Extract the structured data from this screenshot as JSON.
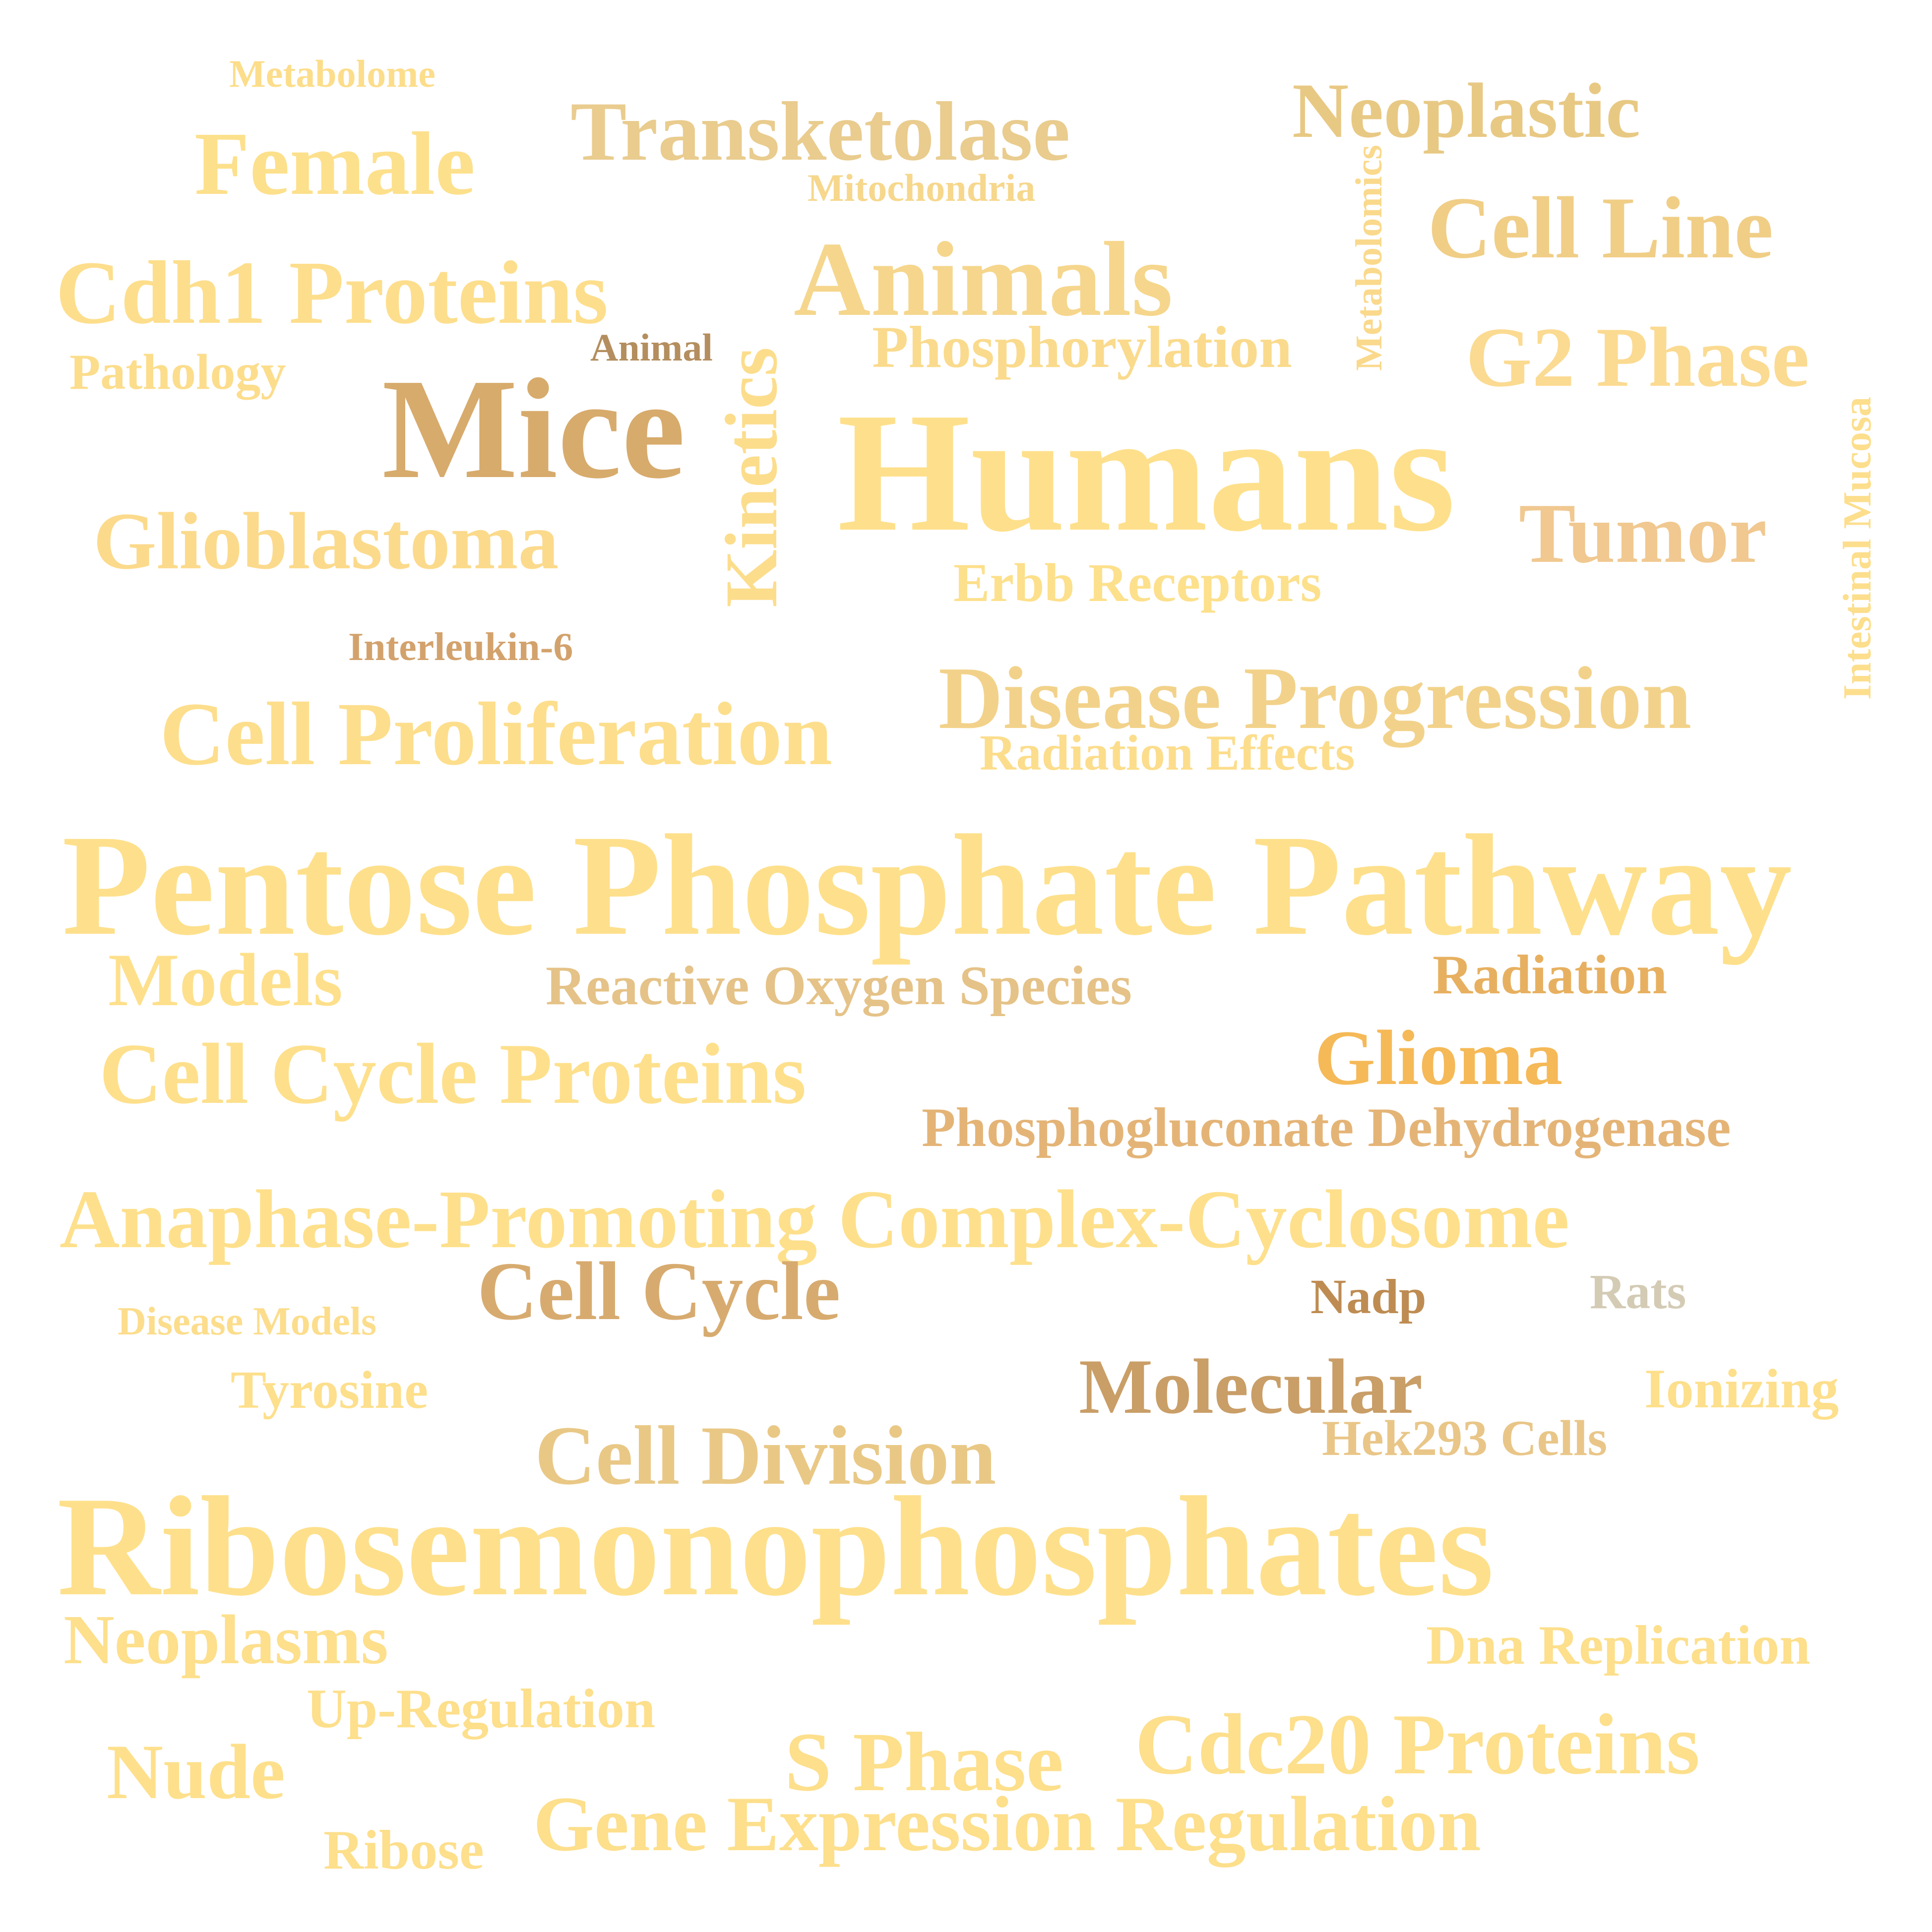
{
  "words": [
    {
      "text": "Metabolome",
      "color": "#FCDD8A"
    },
    {
      "text": "Female",
      "color": "#FDE08C"
    },
    {
      "text": "Transketolase",
      "color": "#E9CC8E"
    },
    {
      "text": "Mitochondria",
      "color": "#F6D78C"
    },
    {
      "text": "Neoplastic",
      "color": "#E8C984"
    },
    {
      "text": "Metabolomics",
      "color": "#FAD98C"
    },
    {
      "text": "Cell Line",
      "color": "#F0CE86"
    },
    {
      "text": "Cdh1 Proteins",
      "color": "#FDDE8C"
    },
    {
      "text": "Animals",
      "color": "#F5D68C"
    },
    {
      "text": "Pathology",
      "color": "#FCDD8C"
    },
    {
      "text": "Animal",
      "color": "#B48E5E"
    },
    {
      "text": "Phosphorylation",
      "color": "#FADA8C"
    },
    {
      "text": "G2 Phase",
      "color": "#FBDA91"
    },
    {
      "text": "Mice",
      "color": "#D7AB6C"
    },
    {
      "text": "Kinetics",
      "color": "#FCDD8C"
    },
    {
      "text": "Humans",
      "color": "#FEE08C"
    },
    {
      "text": "Intestinal Mucosa",
      "color": "#FCDE8C"
    },
    {
      "text": "Tumor",
      "color": "#F0C890"
    },
    {
      "text": "Glioblastoma",
      "color": "#FBDA8C"
    },
    {
      "text": "Erbb Receptors",
      "color": "#FDE08C"
    },
    {
      "text": "Interleukin-6",
      "color": "#D3A26C"
    },
    {
      "text": "Disease Progression",
      "color": "#F2D28A"
    },
    {
      "text": "Cell Proliferation",
      "color": "#FDDE8C"
    },
    {
      "text": "Radiation Effects",
      "color": "#FCDD8C"
    },
    {
      "text": "Pentose Phosphate Pathway",
      "color": "#FEE08C"
    },
    {
      "text": "Models",
      "color": "#FEE08C"
    },
    {
      "text": "Reactive Oxygen Species",
      "color": "#E5C287"
    },
    {
      "text": "Radiation",
      "color": "#E7B060"
    },
    {
      "text": "Cell Cycle Proteins",
      "color": "#FEE08C"
    },
    {
      "text": "Glioma",
      "color": "#F5B957"
    },
    {
      "text": "Phosphogluconate Dehydrogenase",
      "color": "#E4B477"
    },
    {
      "text": "Anaphase-Promoting Complex-Cyclosome",
      "color": "#FEE08C"
    },
    {
      "text": "Cell Cycle",
      "color": "#D7AB6F"
    },
    {
      "text": "Nadp",
      "color": "#BE8C52"
    },
    {
      "text": "Rats",
      "color": "#D4CBB5"
    },
    {
      "text": "Disease Models",
      "color": "#FCDD8C"
    },
    {
      "text": "Molecular",
      "color": "#C99E67"
    },
    {
      "text": "Tyrosine",
      "color": "#FDDF8C"
    },
    {
      "text": "Ionizing",
      "color": "#FDDF8C"
    },
    {
      "text": "Cell Division",
      "color": "#E9C886"
    },
    {
      "text": "Hek293 Cells",
      "color": "#E9C688"
    },
    {
      "text": "Ribosemonophosphates",
      "color": "#FEE08C"
    },
    {
      "text": "Neoplasms",
      "color": "#FDDF8C"
    },
    {
      "text": "Dna Replication",
      "color": "#FDDF8C"
    },
    {
      "text": "Up-Regulation",
      "color": "#FDDF8C"
    },
    {
      "text": "Nude",
      "color": "#FEE08C"
    },
    {
      "text": "S Phase",
      "color": "#FDDF8C"
    },
    {
      "text": "Cdc20 Proteins",
      "color": "#FDDF8C"
    },
    {
      "text": "Gene Expression Regulation",
      "color": "#FDDF8C"
    },
    {
      "text": "Ribose",
      "color": "#FDDF8C"
    }
  ]
}
